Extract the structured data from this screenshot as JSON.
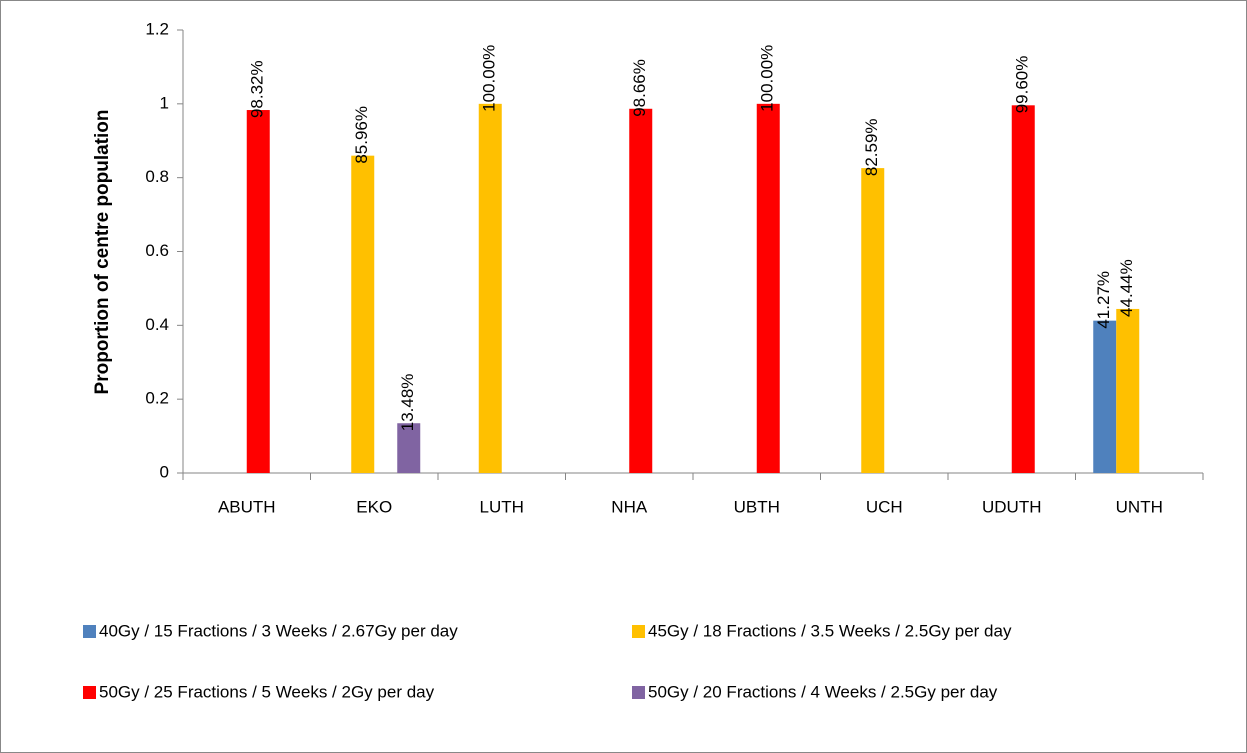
{
  "chart_data": {
    "type": "bar",
    "ylabel": "Proportion of centre population",
    "categories": [
      "ABUTH",
      "EKO",
      "LUTH",
      "NHA",
      "UBTH",
      "UCH",
      "UDUTH",
      "UNTH"
    ],
    "series": [
      {
        "name": "40Gy / 15 Fractions / 3 Weeks / 2.67Gy per day",
        "color": "#4f81bd",
        "values": [
          null,
          null,
          null,
          null,
          null,
          null,
          null,
          0.4127
        ],
        "value_labels": [
          null,
          null,
          null,
          null,
          null,
          null,
          null,
          "41.27%"
        ]
      },
      {
        "name": "45Gy / 18 Fractions / 3.5 Weeks / 2.5Gy per day",
        "color": "#ffc000",
        "values": [
          null,
          0.8596,
          1,
          null,
          null,
          0.8259,
          null,
          0.4444
        ],
        "value_labels": [
          null,
          "85.96%",
          "100.00%",
          null,
          null,
          "82.59%",
          null,
          "44.44%"
        ]
      },
      {
        "name": "50Gy / 25 Fractions / 5 Weeks / 2Gy per day",
        "color": "#ff0000",
        "values": [
          0.9832,
          null,
          null,
          0.9866,
          1,
          null,
          0.996,
          null
        ],
        "value_labels": [
          "98.32%",
          null,
          null,
          "98.66%",
          "100.00%",
          null,
          "99.60%",
          null
        ]
      },
      {
        "name": "50Gy / 20 Fractions / 4 Weeks / 2.5Gy per day",
        "color": "#8064a2",
        "values": [
          null,
          0.1348,
          null,
          null,
          null,
          null,
          null,
          null
        ],
        "value_labels": [
          null,
          "13.48%",
          null,
          null,
          null,
          null,
          null,
          null
        ]
      }
    ],
    "ylim": [
      0,
      1.2
    ],
    "yticks": [
      0,
      0.2,
      0.4,
      0.6,
      0.8,
      1,
      1.2
    ],
    "grid": false
  }
}
